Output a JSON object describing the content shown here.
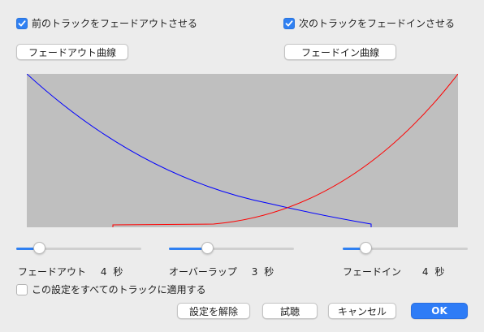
{
  "fade_out_checkbox": {
    "label": "前のトラックをフェードアウトさせる",
    "checked": true
  },
  "fade_in_checkbox": {
    "label": "次のトラックをフェードインさせる",
    "checked": true
  },
  "fade_out_curve_button": "フェードアウト曲線",
  "fade_in_curve_button": "フェードイン曲線",
  "graph": {
    "background": "#bfbfbf",
    "fade_out_color": "#0000ff",
    "fade_in_color": "#ff0000"
  },
  "sliders": {
    "fade_out": {
      "label": "フェードアウト",
      "value": "4",
      "unit": "秒",
      "level": 0.18
    },
    "overlap": {
      "label": "オーバーラップ",
      "value": "3",
      "unit": "秒",
      "level": 0.3
    },
    "fade_in": {
      "label": "フェードイン",
      "value": "4",
      "unit": "秒",
      "level": 0.18
    }
  },
  "apply_all_checkbox": {
    "label": "この設定をすべてのトラックに適用する",
    "checked": false
  },
  "buttons": {
    "remove": "設定を解除",
    "preview": "試聴",
    "cancel": "キャンセル",
    "ok": "OK"
  },
  "colors": {
    "accent": "#2f80f2"
  }
}
